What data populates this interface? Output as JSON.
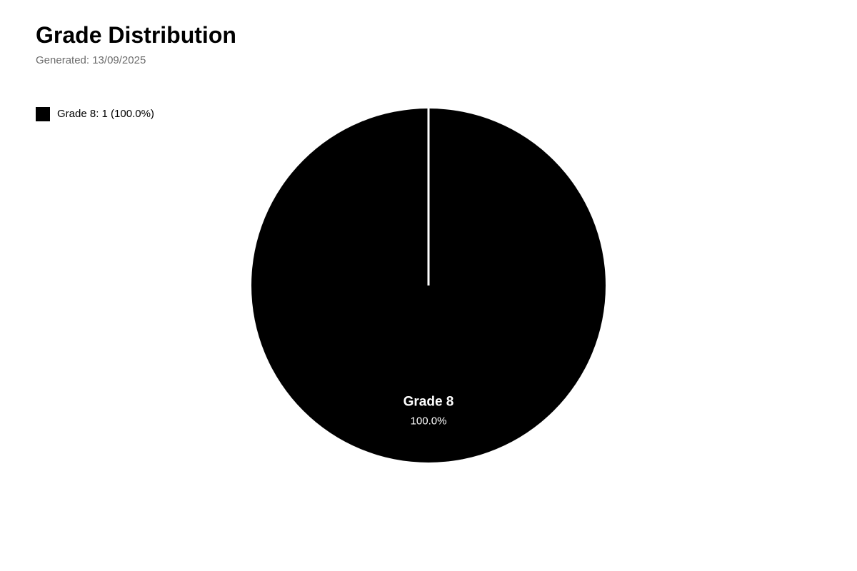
{
  "header": {
    "title": "Grade Distribution",
    "subtitle": "Generated: 13/09/2025"
  },
  "legend": {
    "placement": "top-left",
    "items": [
      {
        "label": "Grade 8: 1 (100.0%)",
        "color": "#000000"
      }
    ]
  },
  "chart_data": {
    "type": "pie",
    "title": "Grade Distribution",
    "subtitle": "Generated: 13/09/2025",
    "slices": [
      {
        "label": "Grade 8",
        "value": 1,
        "percent_label": "100.0%",
        "color": "#000000"
      }
    ],
    "slice_border_color": "#ffffff",
    "label_color": "#ffffff",
    "legend": "top-left"
  }
}
